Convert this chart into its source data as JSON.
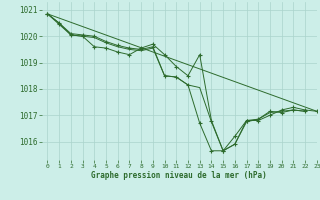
{
  "title": "Graphe pression niveau de la mer (hPa)",
  "background_color": "#cceee8",
  "grid_color": "#aad4cc",
  "line_color": "#2d6b2d",
  "xlim": [
    -0.5,
    23
  ],
  "ylim": [
    1015.3,
    1021.3
  ],
  "yticks": [
    1016,
    1017,
    1018,
    1019,
    1020,
    1021
  ],
  "xticks": [
    0,
    1,
    2,
    3,
    4,
    5,
    6,
    7,
    8,
    9,
    10,
    11,
    12,
    13,
    14,
    15,
    16,
    17,
    18,
    19,
    20,
    21,
    22,
    23
  ],
  "series": [
    {
      "x": [
        0,
        1,
        2,
        3,
        4,
        5,
        6,
        7,
        8,
        9,
        10,
        11,
        12,
        13,
        14,
        15,
        16,
        17,
        18,
        19,
        20,
        21,
        22,
        23
      ],
      "y": [
        1020.85,
        1020.5,
        1020.1,
        1020.05,
        1020.0,
        1019.8,
        1019.65,
        1019.55,
        1019.5,
        1019.6,
        1018.5,
        1018.45,
        1018.15,
        1016.7,
        1015.65,
        1015.65,
        1015.9,
        1016.8,
        1016.85,
        1017.15,
        1017.1,
        1017.2,
        1017.15,
        null
      ],
      "marker": true
    },
    {
      "x": [
        0,
        1,
        2,
        3,
        4,
        5,
        6,
        7,
        8,
        9,
        10,
        11,
        12,
        13,
        14,
        15,
        16,
        17,
        18,
        19,
        20,
        21,
        22,
        23
      ],
      "y": [
        1020.85,
        1020.5,
        1020.05,
        1020.0,
        1019.95,
        1019.75,
        1019.6,
        1019.5,
        1019.45,
        1019.55,
        1018.5,
        1018.45,
        1018.15,
        1018.05,
        1016.75,
        1015.65,
        1015.9,
        1016.75,
        1016.85,
        1017.1,
        1017.15,
        1017.2,
        1017.15,
        null
      ],
      "marker": false
    },
    {
      "x": [
        0,
        23
      ],
      "y": [
        1020.85,
        1017.15
      ],
      "marker": false
    },
    {
      "x": [
        0,
        1,
        2,
        3,
        4,
        5,
        6,
        7,
        8,
        9,
        10,
        11,
        12,
        13,
        14,
        15,
        16,
        17,
        18,
        19,
        20,
        21,
        22,
        23
      ],
      "y": [
        1020.85,
        1020.45,
        1020.05,
        1020.0,
        1019.6,
        1019.55,
        1019.4,
        1019.3,
        1019.55,
        1019.7,
        1019.3,
        1018.85,
        1018.5,
        1019.3,
        1016.8,
        1015.65,
        1016.2,
        1016.8,
        1016.8,
        1017.0,
        1017.2,
        1017.3,
        1017.2,
        1017.15
      ],
      "marker": true
    }
  ]
}
